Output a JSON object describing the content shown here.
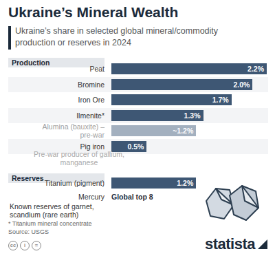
{
  "header": {
    "title": "Ukraine’s Mineral Wealth",
    "subtitle": "Ukraine’s share in selected global mineral/commodity production or reserves in 2024"
  },
  "chart_data": [
    {
      "type": "bar",
      "title": "Production",
      "orientation": "horizontal",
      "categories": [
        "Peat",
        "Bromine",
        "Iron Ore",
        "Ilmenite*",
        "Alumina (bauxite) – pre-war",
        "Pig iron"
      ],
      "values": [
        2.2,
        2.0,
        1.7,
        1.3,
        1.2,
        0.5
      ],
      "value_labels": [
        "2.2%",
        "2.0%",
        "1.7%",
        "1.3%",
        "~1.2%",
        "0.5%"
      ],
      "color": "#3e5774",
      "colors": [
        "#3e5774",
        "#3e5774",
        "#3e5774",
        "#3e5774",
        "#a3b0bf",
        "#3e5774"
      ],
      "xlim": [
        0,
        2.2
      ],
      "tick_labels": false,
      "data_labels": true,
      "annotations": [
        "Pre-war producer of gallium, manganese"
      ]
    },
    {
      "type": "bar",
      "title": "Reserves",
      "orientation": "horizontal",
      "categories": [
        "Titanium (pigment)",
        "Mercury"
      ],
      "values": [
        1.2,
        null
      ],
      "value_labels": [
        "1.2%",
        "Global top 8"
      ],
      "color": "#3e5774",
      "colors": [
        "#3e5774",
        "#1f2e40"
      ],
      "xlim": [
        0,
        2.2
      ],
      "tick_labels": false,
      "data_labels": true,
      "annotations": [
        "Known reserves of garnet, scandium (rare earth)"
      ]
    }
  ],
  "footnote": "* Titanium mineral concentrate",
  "source": "Source: USGS",
  "license": [
    "cc",
    "i",
    "="
  ],
  "brand": "statista"
}
